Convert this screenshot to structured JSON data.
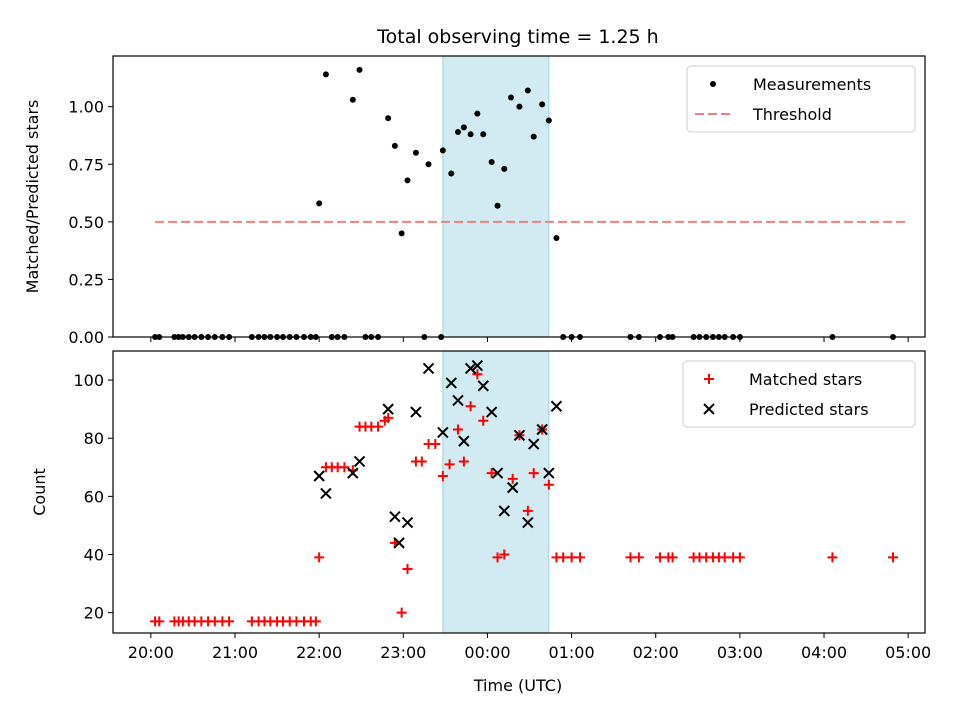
{
  "chart_data": {
    "title": "Total observing time = 1.25 h",
    "xlabel": "Time (UTC)",
    "x_ticks": [
      "20:00",
      "21:00",
      "22:00",
      "23:00",
      "00:00",
      "01:00",
      "02:00",
      "03:00",
      "04:00",
      "05:00"
    ],
    "x_range_hours_from_2000": [
      -0.45,
      9.2
    ],
    "highlight_span_hours_from_2000": [
      3.47,
      4.73
    ],
    "colors": {
      "measurements": "#000000",
      "threshold": "#f08080",
      "matched": "#ff0000",
      "predicted": "#000000",
      "highlight": "#add8e6"
    },
    "panels": [
      {
        "type": "scatter",
        "ylabel": "Matched/Predicted stars",
        "ylim": [
          0.0,
          1.22
        ],
        "y_ticks": [
          "0.00",
          "0.25",
          "0.50",
          "0.75",
          "1.00"
        ],
        "legend_position": "top-right",
        "legend": [
          "Measurements",
          "Threshold"
        ],
        "threshold": {
          "value": 0.5,
          "x_range": [
            0.05,
            9.0
          ]
        },
        "series": [
          {
            "name": "Measurements",
            "x": [
              0.05,
              0.1,
              0.28,
              0.33,
              0.38,
              0.45,
              0.52,
              0.6,
              0.68,
              0.76,
              0.85,
              0.93,
              1.2,
              1.28,
              1.35,
              1.42,
              1.5,
              1.57,
              1.65,
              1.73,
              1.82,
              1.9,
              1.96,
              2.15,
              2.22,
              2.3,
              2.55,
              2.62,
              2.7,
              3.25,
              3.45,
              2.0,
              2.08,
              2.4,
              2.48,
              2.82,
              2.9,
              2.98,
              3.05,
              3.15,
              3.3,
              3.47,
              3.57,
              3.65,
              3.72,
              3.8,
              3.88,
              3.95,
              4.05,
              4.12,
              4.2,
              4.28,
              4.38,
              4.48,
              4.55,
              4.65,
              4.73,
              4.82,
              4.9,
              5.0,
              5.1,
              5.7,
              5.8,
              6.05,
              6.15,
              6.2,
              6.45,
              6.52,
              6.6,
              6.68,
              6.75,
              6.82,
              6.92,
              7.0,
              8.1,
              8.82
            ],
            "values": [
              0,
              0,
              0,
              0,
              0,
              0,
              0,
              0,
              0,
              0,
              0,
              0,
              0,
              0,
              0,
              0,
              0,
              0,
              0,
              0,
              0,
              0,
              0,
              0,
              0,
              0,
              0,
              0,
              0,
              0,
              0,
              0.58,
              1.14,
              1.03,
              1.16,
              0.95,
              0.83,
              0.45,
              0.68,
              0.8,
              0.75,
              0.81,
              0.71,
              0.89,
              0.91,
              0.88,
              0.97,
              0.88,
              0.76,
              0.57,
              0.73,
              1.04,
              1.0,
              1.07,
              0.87,
              1.01,
              0.94,
              0.43,
              0,
              0,
              0,
              0,
              0,
              0,
              0,
              0,
              0,
              0,
              0,
              0,
              0,
              0,
              0,
              0,
              0,
              0
            ]
          }
        ]
      },
      {
        "type": "scatter",
        "ylabel": "Count",
        "ylim": [
          13,
          110
        ],
        "y_ticks": [
          "20",
          "40",
          "60",
          "80",
          "100"
        ],
        "legend_position": "top-right",
        "legend": [
          "Matched stars",
          "Predicted stars"
        ],
        "series": [
          {
            "name": "Matched stars",
            "x": [
              0.05,
              0.1,
              0.28,
              0.33,
              0.38,
              0.45,
              0.52,
              0.6,
              0.68,
              0.76,
              0.85,
              0.93,
              1.2,
              1.28,
              1.35,
              1.42,
              1.5,
              1.57,
              1.65,
              1.73,
              1.82,
              1.9,
              1.96,
              2.0,
              2.08,
              2.15,
              2.22,
              2.3,
              2.4,
              2.48,
              2.55,
              2.62,
              2.7,
              2.78,
              2.82,
              2.9,
              2.98,
              3.05,
              3.15,
              3.22,
              3.3,
              3.38,
              3.47,
              3.55,
              3.65,
              3.72,
              3.8,
              3.88,
              3.95,
              4.05,
              4.12,
              4.2,
              4.3,
              4.38,
              4.48,
              4.55,
              4.65,
              4.73,
              4.82,
              4.9,
              5.0,
              5.1,
              5.7,
              5.8,
              6.05,
              6.15,
              6.2,
              6.45,
              6.52,
              6.6,
              6.68,
              6.75,
              6.82,
              6.92,
              7.0,
              8.1,
              8.82
            ],
            "values": [
              17,
              17,
              17,
              17,
              17,
              17,
              17,
              17,
              17,
              17,
              17,
              17,
              17,
              17,
              17,
              17,
              17,
              17,
              17,
              17,
              17,
              17,
              17,
              39,
              70,
              70,
              70,
              70,
              69,
              84,
              84,
              84,
              84,
              86,
              87,
              44,
              20,
              35,
              72,
              72,
              78,
              78,
              67,
              71,
              83,
              72,
              91,
              102,
              86,
              68,
              39,
              40,
              66,
              81,
              55,
              68,
              83,
              64,
              39,
              39,
              39,
              39,
              39,
              39,
              39,
              39,
              39,
              39,
              39,
              39,
              39,
              39,
              39,
              39,
              39,
              39,
              39
            ]
          },
          {
            "name": "Predicted stars",
            "x": [
              2.0,
              2.08,
              2.4,
              2.48,
              2.82,
              2.9,
              2.95,
              3.05,
              3.15,
              3.3,
              3.47,
              3.57,
              3.65,
              3.72,
              3.8,
              3.88,
              3.95,
              4.05,
              4.12,
              4.2,
              4.3,
              4.38,
              4.48,
              4.55,
              4.65,
              4.73,
              4.82
            ],
            "values": [
              67,
              61,
              68,
              72,
              90,
              53,
              44,
              51,
              89,
              104,
              82,
              99,
              93,
              79,
              104,
              105,
              98,
              89,
              68,
              55,
              63,
              81,
              51,
              78,
              83,
              68,
              91
            ]
          }
        ]
      }
    ]
  }
}
